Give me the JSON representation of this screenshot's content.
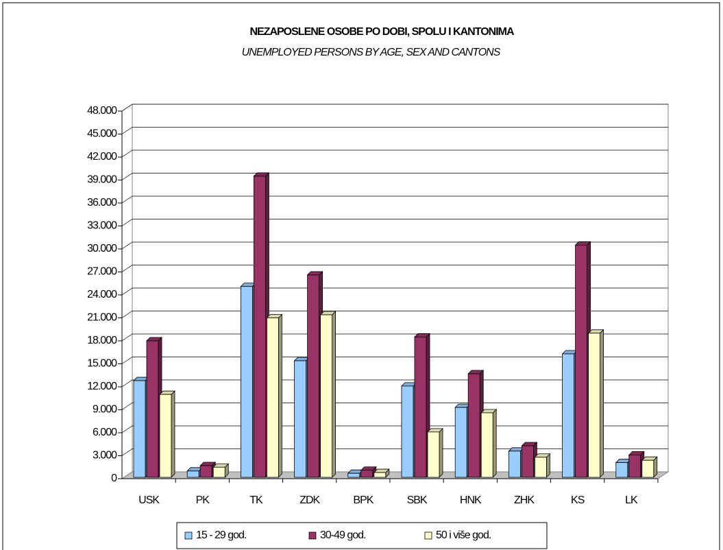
{
  "chart_data": {
    "type": "bar3d",
    "title": "NEZAPOSLENE OSOBE PO DOBI, SPOLU I KANTONIMA",
    "subtitle": "UNEMPLOYED PERSONS BY AGE, SEX AND CANTONS",
    "categories": [
      "USK",
      "PK",
      "TK",
      "ZDK",
      "BPK",
      "SBK",
      "HNK",
      "ZHK",
      "KS",
      "LK"
    ],
    "series": [
      {
        "name": "15 - 29 god.",
        "color": "#99ccff",
        "values": [
          12800,
          1000,
          25100,
          15400,
          700,
          12100,
          9300,
          3600,
          16300,
          2100
        ]
      },
      {
        "name": "30-49 god.",
        "color": "#993366",
        "values": [
          18000,
          1700,
          39500,
          26600,
          1100,
          18500,
          13700,
          4300,
          30500,
          3100
        ]
      },
      {
        "name": "50 i više god.",
        "color": "#ffffcc",
        "values": [
          11000,
          1500,
          21000,
          21400,
          800,
          6100,
          8600,
          2800,
          19000,
          2400
        ]
      }
    ],
    "ylim": [
      0,
      48000
    ],
    "yticks": [
      0,
      {
        "value": 3000,
        "label": "3.000"
      },
      {
        "value": 6000,
        "label": "6.000"
      },
      {
        "value": 9000,
        "label": "9.000"
      },
      {
        "value": 12000,
        "label": "12.000"
      },
      {
        "value": 15000,
        "label": "15.000"
      },
      {
        "value": 18000,
        "label": "18.000"
      },
      {
        "value": 21000,
        "label": "21.000"
      },
      {
        "value": 24000,
        "label": "24.000"
      },
      {
        "value": 27000,
        "label": "27.000"
      },
      {
        "value": 30000,
        "label": "30.000"
      },
      {
        "value": 33000,
        "label": "33.000"
      },
      {
        "value": 36000,
        "label": "36.000"
      },
      {
        "value": 39000,
        "label": "39.000"
      },
      {
        "value": 42000,
        "label": "42.000"
      },
      {
        "value": 45000,
        "label": "45.000"
      },
      {
        "value": 48000,
        "label": "48.000"
      }
    ],
    "grid": true,
    "legend": "bottom"
  }
}
